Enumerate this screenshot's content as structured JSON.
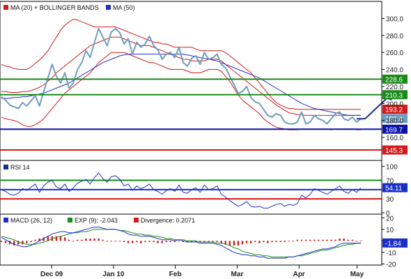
{
  "colors": {
    "price": "#6f9dbf",
    "ma20": "#d41a1a",
    "bands": "#d41a1a",
    "ma50": "#1a2fc9",
    "support": "#0a12a8",
    "resistance_green": "#1a8a1a",
    "stop_red": "#d41a1a",
    "rsi_line": "#1a2fc9",
    "macd_line": "#1a2fc9",
    "ema_line": "#1a8a1a",
    "divergence": "#d41a1a",
    "arrow": "#1a2f8a"
  },
  "chart_data": [
    {
      "id": "price",
      "type": "line",
      "title": "",
      "legend": [
        {
          "label": "MA (20) + BOLLINGER BANDS",
          "color": "#d41a1a"
        },
        {
          "label": "MA (50)",
          "color": "#1a2fc9"
        }
      ],
      "ylim": [
        133,
        320
      ],
      "yticks": [
        160,
        180,
        200,
        220,
        240,
        260,
        280,
        300
      ],
      "x_months": [
        "Dec 09",
        "Jan 10",
        "Feb",
        "Mar",
        "Apr",
        "May"
      ],
      "price": [
        208,
        204,
        198,
        196,
        194,
        201,
        197,
        203,
        209,
        197,
        214,
        230,
        246,
        232,
        224,
        236,
        218,
        224,
        240,
        248,
        262,
        254,
        272,
        288,
        278,
        268,
        284,
        288,
        283,
        270,
        276,
        258,
        272,
        266,
        270,
        279,
        268,
        263,
        252,
        258,
        260,
        254,
        266,
        248,
        244,
        253,
        256,
        246,
        260,
        252,
        254,
        258,
        246,
        242,
        232,
        222,
        212,
        214,
        220,
        207,
        202,
        200,
        193,
        186,
        184,
        188,
        186,
        178,
        176,
        176,
        178,
        190,
        176,
        178,
        186,
        182,
        180,
        176,
        182,
        188,
        190,
        182,
        180,
        184,
        178,
        182
      ],
      "ma20": [
        214,
        214,
        213,
        213,
        213,
        214,
        214,
        215,
        217,
        219,
        222,
        226,
        230,
        236,
        240,
        244,
        248,
        252,
        256,
        260,
        264,
        268,
        270,
        272,
        274,
        276,
        278,
        278,
        278,
        276,
        274,
        272,
        270,
        268,
        268,
        268,
        266,
        264,
        262,
        260,
        258,
        256,
        254,
        252,
        252,
        250,
        250,
        250,
        250,
        252,
        252,
        252,
        250,
        246,
        242,
        238,
        234,
        230,
        226,
        222,
        218,
        214,
        210,
        206,
        202,
        198,
        195,
        192,
        189,
        188,
        187,
        187,
        186,
        186,
        186,
        186,
        186,
        186,
        186,
        186,
        186,
        186,
        186,
        186,
        186,
        186
      ],
      "bb_upper": [
        246,
        244,
        243,
        241,
        240,
        240,
        240,
        243,
        247,
        251,
        256,
        262,
        270,
        278,
        286,
        292,
        296,
        299,
        298,
        296,
        294,
        292,
        290,
        290,
        290,
        290,
        290,
        290,
        288,
        286,
        284,
        282,
        280,
        278,
        276,
        274,
        272,
        272,
        270,
        270,
        268,
        266,
        266,
        266,
        266,
        266,
        264,
        262,
        262,
        262,
        262,
        262,
        262,
        260,
        256,
        252,
        248,
        244,
        240,
        236,
        230,
        224,
        218,
        212,
        206,
        201,
        198,
        196,
        194,
        194,
        193,
        193,
        193,
        193,
        193,
        193,
        193,
        193,
        193,
        193,
        193,
        193,
        193,
        193,
        193,
        193
      ],
      "bb_lower": [
        184,
        182,
        181,
        180,
        178,
        175,
        173,
        173,
        175,
        178,
        182,
        188,
        194,
        200,
        206,
        212,
        216,
        220,
        224,
        228,
        232,
        236,
        242,
        248,
        252,
        256,
        260,
        260,
        260,
        260,
        258,
        256,
        254,
        252,
        250,
        248,
        248,
        246,
        244,
        242,
        240,
        240,
        240,
        240,
        238,
        236,
        236,
        236,
        238,
        240,
        240,
        240,
        238,
        232,
        226,
        218,
        210,
        204,
        200,
        196,
        192,
        188,
        182,
        178,
        175,
        172,
        171,
        170,
        169,
        169,
        169,
        170,
        170,
        170,
        170,
        170,
        170,
        170,
        169,
        170,
        170,
        170,
        170,
        170,
        169,
        169
      ],
      "ma50": [
        206,
        206,
        206,
        207,
        207,
        208,
        208,
        209,
        210,
        211,
        212,
        214,
        216,
        218,
        220,
        222,
        224,
        227,
        230,
        233,
        236,
        239,
        242,
        245,
        248,
        250,
        252,
        254,
        256,
        257,
        258,
        258,
        258,
        258,
        258,
        258,
        258,
        258,
        258,
        258,
        258,
        258,
        258,
        258,
        257,
        256,
        255,
        254,
        253,
        252,
        251,
        250,
        248,
        246,
        244,
        242,
        240,
        238,
        236,
        234,
        232,
        230,
        227,
        224,
        221,
        218,
        215,
        212,
        209,
        206,
        203,
        200,
        198,
        196,
        194,
        193,
        192,
        191,
        190,
        189,
        188,
        187,
        186,
        186,
        186,
        186
      ],
      "h_lines": [
        {
          "value": 228.6,
          "label": "228.6",
          "color": "#1a8a1a"
        },
        {
          "value": 210.3,
          "label": "210.3",
          "color": "#1a8a1a"
        },
        {
          "value": 169.7,
          "label": "169.7",
          "color": "#0a12a8"
        },
        {
          "value": 145.3,
          "label": "145.3",
          "color": "#d41a1a"
        }
      ],
      "value_tags": [
        {
          "value": 193.2,
          "label": "193.2",
          "color": "#d41a1a"
        },
        {
          "value": 182.4,
          "label": "182.4",
          "color": "#6f9dbf"
        }
      ],
      "arrow": {
        "from": [
          86,
          182
        ],
        "to": [
          92,
          210
        ]
      }
    },
    {
      "id": "rsi",
      "type": "line",
      "title": "",
      "legend": [
        {
          "label": "RSI 14",
          "color": "#1a2f8a"
        }
      ],
      "ylim": [
        0,
        110
      ],
      "yticks": [
        0,
        30,
        50,
        70,
        100
      ],
      "values": [
        50,
        46,
        40,
        38,
        42,
        52,
        48,
        55,
        62,
        44,
        58,
        66,
        70,
        56,
        52,
        62,
        46,
        54,
        64,
        68,
        72,
        62,
        76,
        86,
        74,
        66,
        78,
        80,
        72,
        58,
        62,
        48,
        58,
        52,
        56,
        62,
        50,
        46,
        40,
        48,
        52,
        46,
        60,
        44,
        42,
        50,
        54,
        44,
        60,
        50,
        52,
        58,
        40,
        34,
        26,
        20,
        14,
        18,
        24,
        14,
        12,
        14,
        10,
        10,
        14,
        18,
        20,
        14,
        18,
        16,
        20,
        38,
        32,
        40,
        52,
        48,
        44,
        40,
        46,
        52,
        58,
        46,
        42,
        50,
        44,
        54
      ],
      "h_lines": [
        {
          "value": 70,
          "label": "70",
          "color": "#1a8a1a"
        },
        {
          "value": 30,
          "label": "30",
          "color": "#d41a1a"
        },
        {
          "value": 50,
          "label": "",
          "color": "#1a2fc9"
        }
      ],
      "value_tag": {
        "value": 54.11,
        "label": "54.11",
        "color": "#1a2fc9"
      }
    },
    {
      "id": "macd",
      "type": "line",
      "title": "",
      "legend": [
        {
          "label": "MACD (26, 12)",
          "color": "#1a2fc9"
        },
        {
          "label": "EXP (9): -2.043",
          "color": "#1a8a1a"
        },
        {
          "label": "Divergence: 0.2071",
          "color": "#d41a1a"
        }
      ],
      "ylim": [
        -21,
        22
      ],
      "yticks": [
        -20,
        -10,
        0,
        10,
        20
      ],
      "macd": [
        3,
        1,
        -1,
        -3,
        -4,
        -5,
        -5,
        -4,
        -2,
        0,
        2,
        4,
        6,
        7,
        8,
        8,
        7,
        7,
        8,
        9,
        10,
        11,
        12,
        12,
        11,
        10,
        10,
        10,
        9,
        8,
        6,
        5,
        5,
        4,
        4,
        4,
        3,
        2,
        1,
        1,
        1,
        0,
        1,
        0,
        -1,
        -1,
        -1,
        -2,
        -2,
        -2,
        -2,
        -3,
        -4,
        -6,
        -8,
        -10,
        -11,
        -12,
        -12,
        -13,
        -13,
        -14,
        -14,
        -15,
        -15,
        -15,
        -15,
        -15,
        -14,
        -14,
        -13,
        -12,
        -11,
        -10,
        -9,
        -8,
        -7,
        -7,
        -6,
        -5,
        -3,
        -2,
        -2,
        -2,
        -2,
        -1.84
      ],
      "exp9": [
        4,
        3,
        2,
        1,
        -1,
        -2,
        -3,
        -3,
        -3,
        -2,
        -1,
        0,
        2,
        3,
        4,
        5,
        6,
        7,
        7,
        8,
        8,
        9,
        10,
        10,
        10,
        10,
        10,
        10,
        9,
        9,
        8,
        7,
        6,
        6,
        5,
        5,
        4,
        4,
        3,
        2,
        2,
        1,
        1,
        1,
        0,
        0,
        0,
        -1,
        -1,
        -1,
        -1,
        -2,
        -2,
        -3,
        -4,
        -6,
        -7,
        -9,
        -10,
        -11,
        -12,
        -12,
        -13,
        -13,
        -14,
        -14,
        -14,
        -14,
        -14,
        -14,
        -13,
        -13,
        -12,
        -11,
        -10,
        -9,
        -8,
        -8,
        -7,
        -6,
        -5,
        -4,
        -3,
        -3,
        -2,
        -2.043
      ],
      "divergence": [
        -1,
        -2,
        -3,
        -4,
        -3,
        -3,
        -2,
        -1,
        1,
        2,
        3,
        4,
        4,
        4,
        4,
        3,
        1,
        0,
        1,
        1,
        2,
        2,
        2,
        2,
        1,
        0,
        0,
        0,
        0,
        -1,
        -2,
        -2,
        -1,
        -2,
        -1,
        -1,
        -1,
        -2,
        -2,
        -1,
        -1,
        -1,
        0,
        -1,
        -1,
        -1,
        -1,
        -1,
        -1,
        -1,
        -1,
        -1,
        -2,
        -3,
        -4,
        -4,
        -4,
        -3,
        -2,
        -2,
        -1,
        -2,
        -1,
        -2,
        -1,
        -1,
        -1,
        -1,
        0,
        0,
        1,
        1,
        1,
        1,
        1,
        1,
        1,
        1,
        1,
        1,
        2,
        2,
        1,
        1,
        0,
        0.2
      ],
      "zero_line": 0,
      "value_tag": {
        "value": -1.84,
        "label": "-1.84",
        "color": "#1a2fc9"
      }
    }
  ]
}
